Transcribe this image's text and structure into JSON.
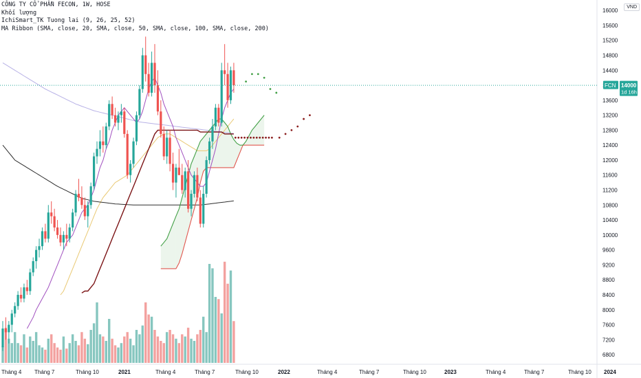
{
  "legend": {
    "symbol_line": "CÔNG TY CỔ PHẦN FECON, 1W, HOSE",
    "volume_line": "Khối lượng",
    "ichimoku_line": "IchiSmart_TK Tuong lai (9, 26, 25, 52)",
    "ma_line": "MA Ribbon (SMA, close, 20, SMA, close, 50, SMA, close, 100, SMA, close, 200)"
  },
  "currency": "VND",
  "price_label": {
    "ticker": "FCN",
    "price": "14000",
    "countdown": "1d 16h",
    "value": 14000,
    "color": "#26a69a"
  },
  "colors": {
    "up": "#26a69a",
    "down": "#ef5350",
    "vol_up": "#86c6bf",
    "vol_down": "#f3a19f",
    "tenkan": "#a04fbf",
    "kijun": "#7b1315",
    "span_a": "#43a047",
    "span_b": "#e0574f",
    "kumo_bull": "rgba(67,160,71,0.10)",
    "kumo_bear": "rgba(239,83,80,0.14)",
    "ma20": "#e9c872",
    "ma50": "#d9dde0",
    "ma100": "#b7b1e6",
    "ma200": "#2d2d2d",
    "dots_green": "#43a047",
    "dots_red": "#8b1e1e"
  },
  "chart_data": {
    "type": "candlestick",
    "price_axis_ticks": [
      16000,
      15600,
      15200,
      14800,
      14400,
      14000,
      13600,
      13200,
      12800,
      12400,
      12000,
      11600,
      11200,
      10800,
      10400,
      10000,
      9600,
      9200,
      8800,
      8400,
      8000,
      7600,
      7200,
      6800
    ],
    "y_range": [
      6600,
      16150
    ],
    "time_axis_labels": [
      "Tháng 4",
      "Tháng 7",
      "Tháng 10",
      "2021",
      "Tháng 4",
      "Tháng 7",
      "Tháng 10",
      "2022",
      "Tháng 4",
      "Tháng 7",
      "Tháng 10",
      "2023",
      "Tháng 4",
      "Tháng 7",
      "Tháng 10",
      "2024"
    ],
    "last_price": 14000,
    "candles": [
      [
        7000,
        7700,
        6900,
        7500
      ],
      [
        7500,
        7800,
        7200,
        7400
      ],
      [
        7400,
        7700,
        7100,
        7600
      ],
      [
        7600,
        8000,
        7400,
        7900
      ],
      [
        7900,
        8200,
        7800,
        8100
      ],
      [
        8100,
        8500,
        8000,
        8400
      ],
      [
        8400,
        8600,
        8200,
        8300
      ],
      [
        8300,
        8700,
        8200,
        8600
      ],
      [
        8600,
        8800,
        8400,
        8500
      ],
      [
        8500,
        9100,
        8400,
        9000
      ],
      [
        9000,
        9400,
        8900,
        9300
      ],
      [
        9300,
        9700,
        9100,
        9600
      ],
      [
        9600,
        9900,
        9400,
        9700
      ],
      [
        9700,
        10200,
        9600,
        10100
      ],
      [
        10100,
        10300,
        9800,
        9900
      ],
      [
        9900,
        10800,
        9800,
        10600
      ],
      [
        10600,
        10900,
        10300,
        10500
      ],
      [
        10500,
        10700,
        10100,
        10200
      ],
      [
        10200,
        10400,
        9900,
        10000
      ],
      [
        10000,
        10200,
        9700,
        9800
      ],
      [
        9800,
        10100,
        9600,
        10000
      ],
      [
        10000,
        10300,
        9700,
        9900
      ],
      [
        9900,
        10300,
        9800,
        10200
      ],
      [
        10200,
        10700,
        10100,
        10600
      ],
      [
        10600,
        11200,
        10500,
        11100
      ],
      [
        11100,
        11500,
        10900,
        11000
      ],
      [
        11000,
        11300,
        10700,
        10800
      ],
      [
        10800,
        11000,
        10400,
        10500
      ],
      [
        10500,
        10900,
        10200,
        10800
      ],
      [
        10800,
        11400,
        10700,
        11300
      ],
      [
        11300,
        12200,
        11200,
        12100
      ],
      [
        12100,
        12500,
        11900,
        12300
      ],
      [
        12300,
        12800,
        12100,
        12500
      ],
      [
        12500,
        12900,
        12200,
        12400
      ],
      [
        12400,
        13000,
        12300,
        12900
      ],
      [
        12900,
        13600,
        12800,
        13500
      ],
      [
        13500,
        13700,
        13100,
        13200
      ],
      [
        13200,
        13400,
        12900,
        13000
      ],
      [
        13000,
        13300,
        12800,
        13200
      ],
      [
        13200,
        13500,
        13000,
        13300
      ],
      [
        13300,
        13400,
        12600,
        12700
      ],
      [
        12700,
        12800,
        11500,
        11600
      ],
      [
        11600,
        12000,
        11400,
        11900
      ],
      [
        11900,
        12600,
        11800,
        12500
      ],
      [
        12500,
        13300,
        12400,
        13200
      ],
      [
        13200,
        14000,
        13100,
        13900
      ],
      [
        13900,
        15000,
        13800,
        14800
      ],
      [
        14800,
        15300,
        14100,
        14300
      ],
      [
        14300,
        14600,
        13700,
        13800
      ],
      [
        13800,
        14900,
        13700,
        14600
      ],
      [
        14600,
        15100,
        13800,
        14000
      ],
      [
        14000,
        14400,
        13200,
        13300
      ],
      [
        13300,
        13600,
        12600,
        12700
      ],
      [
        12700,
        12900,
        12000,
        12100
      ],
      [
        12100,
        12800,
        11900,
        12600
      ],
      [
        12600,
        12800,
        11700,
        11900
      ],
      [
        11900,
        12200,
        11200,
        11400
      ],
      [
        11400,
        11900,
        11000,
        11800
      ],
      [
        11800,
        12300,
        11600,
        11600
      ],
      [
        11600,
        11900,
        11100,
        11200
      ],
      [
        11200,
        11800,
        11000,
        11700
      ],
      [
        11700,
        12000,
        10600,
        10700
      ],
      [
        10700,
        11200,
        10500,
        11100
      ],
      [
        11100,
        11700,
        11000,
        11600
      ],
      [
        11600,
        11800,
        10900,
        11000
      ],
      [
        11000,
        11200,
        10200,
        10300
      ],
      [
        10300,
        11300,
        10200,
        11100
      ],
      [
        11100,
        12100,
        11000,
        12000
      ],
      [
        12000,
        12600,
        11900,
        12500
      ],
      [
        12500,
        13100,
        12300,
        12900
      ],
      [
        12900,
        13500,
        12800,
        13400
      ],
      [
        13400,
        13500,
        12900,
        13000
      ],
      [
        13000,
        14600,
        12900,
        14400
      ],
      [
        14400,
        15100,
        14000,
        14300
      ],
      [
        14300,
        14600,
        13400,
        13600
      ],
      [
        13600,
        14500,
        13500,
        14400
      ],
      [
        14400,
        14600,
        13800,
        14000
      ]
    ],
    "volume": [
      0.15,
      0.32,
      0.22,
      0.18,
      0.28,
      0.18,
      0.16,
      0.26,
      0.14,
      0.24,
      0.2,
      0.28,
      0.16,
      0.14,
      0.12,
      0.22,
      0.26,
      0.18,
      0.14,
      0.12,
      0.24,
      0.13,
      0.18,
      0.26,
      0.2,
      0.16,
      0.28,
      0.22,
      0.17,
      0.3,
      0.36,
      0.55,
      0.26,
      0.24,
      0.2,
      0.4,
      0.22,
      0.16,
      0.14,
      0.18,
      0.24,
      0.28,
      0.22,
      0.16,
      0.3,
      0.26,
      0.34,
      0.55,
      0.44,
      0.42,
      0.3,
      0.24,
      0.2,
      0.18,
      0.28,
      0.3,
      0.26,
      0.22,
      0.18,
      0.26,
      0.24,
      0.32,
      0.22,
      0.2,
      0.26,
      0.3,
      0.42,
      0.28,
      0.9,
      0.86,
      0.6,
      0.58,
      0.45,
      0.92,
      0.72,
      0.84,
      0.38
    ],
    "tenkan": [
      null,
      null,
      null,
      null,
      null,
      null,
      null,
      null,
      7500,
      7650,
      7800,
      8000,
      8150,
      8300,
      8450,
      8600,
      8800,
      9000,
      9200,
      9400,
      9600,
      9800,
      9900,
      10000,
      10200,
      10400,
      10600,
      10700,
      10800,
      11000,
      11200,
      11500,
      11800,
      12000,
      12300,
      12500,
      12800,
      13000,
      13200,
      13300,
      13400,
      13300,
      13200,
      13100,
      13000,
      13100,
      13300,
      13600,
      13900,
      14100,
      14200,
      14000,
      13800,
      13500,
      13300,
      13100,
      12900,
      12600,
      12400,
      12200,
      12000,
      11800,
      11600,
      11500,
      11400,
      11300,
      11300,
      11400,
      11700,
      12000,
      12300,
      12700,
      13100,
      13400,
      13600,
      13800,
      13900
    ],
    "kijun": [
      null,
      null,
      null,
      null,
      null,
      null,
      null,
      null,
      null,
      null,
      null,
      null,
      null,
      null,
      null,
      null,
      null,
      null,
      null,
      null,
      null,
      null,
      null,
      null,
      null,
      null,
      8450,
      8500,
      8500,
      8600,
      8700,
      8900,
      9100,
      9300,
      9500,
      9700,
      9900,
      10100,
      10300,
      10500,
      10700,
      10900,
      11100,
      11300,
      11500,
      11700,
      11900,
      12100,
      12300,
      12500,
      12700,
      12800,
      12800,
      12800,
      12800,
      12800,
      12800,
      12800,
      12800,
      12800,
      12800,
      12800,
      12800,
      12800,
      12800,
      12750,
      12750,
      12750,
      12750,
      12750,
      12750,
      12750,
      12750,
      12700,
      12700,
      12700,
      12700
    ],
    "kijun_future": [
      12600,
      12600,
      12600,
      12600,
      12600,
      12600,
      12600,
      12600,
      12600,
      12600,
      12600,
      12600,
      12600
    ],
    "span_a": [
      null,
      null,
      null,
      null,
      null,
      null,
      null,
      null,
      null,
      null,
      null,
      null,
      null,
      null,
      null,
      null,
      null,
      null,
      null,
      null,
      null,
      null,
      null,
      null,
      null,
      null,
      null,
      null,
      null,
      null,
      null,
      null,
      null,
      null,
      null,
      null,
      null,
      null,
      null,
      null,
      null,
      null,
      null,
      null,
      null,
      null,
      null,
      null,
      null,
      null,
      null,
      null,
      9700,
      9800,
      9900,
      10100,
      10300,
      10500,
      10700,
      11000,
      11300,
      11600,
      11900,
      12100,
      12300,
      12500,
      12600,
      12700,
      12800,
      12900,
      13000,
      13100,
      13100,
      13000,
      12900,
      12700,
      12550,
      12450,
      12400,
      12400,
      12500,
      12650,
      12800,
      12900,
      13000,
      13100,
      13200
    ],
    "span_b": [
      null,
      null,
      null,
      null,
      null,
      null,
      null,
      null,
      null,
      null,
      null,
      null,
      null,
      null,
      null,
      null,
      null,
      null,
      null,
      null,
      null,
      null,
      null,
      null,
      null,
      null,
      null,
      null,
      null,
      null,
      null,
      null,
      null,
      null,
      null,
      null,
      null,
      null,
      null,
      null,
      null,
      null,
      null,
      null,
      null,
      null,
      null,
      null,
      null,
      null,
      null,
      null,
      9100,
      9100,
      9100,
      9100,
      9100,
      9100,
      9250,
      9500,
      9800,
      10100,
      10400,
      10700,
      11000,
      11400,
      11700,
      11800,
      11800,
      11800,
      11800,
      11800,
      11800,
      11800,
      11800,
      11800,
      11800,
      12000,
      12200,
      12400,
      12400,
      12400,
      12400,
      12400,
      12400,
      12400,
      12400
    ],
    "ma200": [
      12400,
      12300,
      12200,
      12100,
      12000,
      11950,
      11900,
      11850,
      11800,
      11750,
      11700,
      11650,
      11600,
      11550,
      11500,
      11450,
      11400,
      11350,
      11300,
      11260,
      11220,
      11180,
      11140,
      11100,
      11060,
      11020,
      10980,
      10960,
      10940,
      10920,
      10900,
      10890,
      10880,
      10870,
      10860,
      10850,
      10840,
      10830,
      10825,
      10820,
      10815,
      10810,
      10805,
      10800,
      10800,
      10800,
      10800,
      10800,
      10800,
      10800,
      10800,
      10800,
      10800,
      10800,
      10800,
      10800,
      10800,
      10800,
      10800,
      10800,
      10800,
      10800,
      10800,
      10800,
      10800,
      10800,
      10810,
      10820,
      10830,
      10840,
      10850,
      10860,
      10870,
      10880,
      10890,
      10900,
      10910
    ],
    "ma100": [
      14600,
      14550,
      14500,
      14450,
      14400,
      14350,
      14300,
      14250,
      14200,
      14150,
      14100,
      14050,
      14000,
      13950,
      13900,
      13860,
      13820,
      13780,
      13740,
      13700,
      13660,
      13620,
      13580,
      13540,
      13500,
      13470,
      13440,
      13410,
      13380,
      13350,
      13320,
      13300,
      13280,
      13260,
      13240,
      13220,
      13200,
      13180,
      13160,
      13140,
      13120,
      13100,
      13080,
      13060,
      13040,
      13020,
      13010,
      13000,
      12990,
      12980,
      12970,
      12960,
      12950,
      12940,
      12930,
      12920,
      12910,
      12900,
      12890,
      12880,
      12870,
      12860,
      12850,
      12840,
      12830,
      12820,
      12810,
      12800,
      12790,
      12780,
      12770,
      12760,
      12750,
      12740,
      12730,
      12720,
      12710
    ],
    "ma20": [
      null,
      null,
      null,
      null,
      null,
      null,
      null,
      null,
      null,
      null,
      null,
      null,
      null,
      null,
      null,
      null,
      null,
      null,
      null,
      8400,
      8500,
      8700,
      8900,
      9100,
      9300,
      9500,
      9700,
      9900,
      10100,
      10300,
      10500,
      10700,
      10850,
      11000,
      11100,
      11200,
      11300,
      11400,
      11450,
      11500,
      11550,
      11600,
      11700,
      11800,
      11900,
      12000,
      12100,
      12200,
      12300,
      12400,
      12500,
      12600,
      12650,
      12700,
      12700,
      12700,
      12650,
      12600,
      12550,
      12500,
      12450,
      12400,
      12350,
      12300,
      12250,
      12250,
      12250,
      12250,
      12300,
      12400,
      12500,
      12600,
      12700,
      12800,
      12900,
      13000,
      13100
    ],
    "future_green_dots": [
      14100,
      14300,
      14300,
      14200,
      13900,
      13800
    ],
    "future_red_dots": [
      12600,
      12700,
      12800,
      12900,
      13100,
      13200
    ]
  }
}
